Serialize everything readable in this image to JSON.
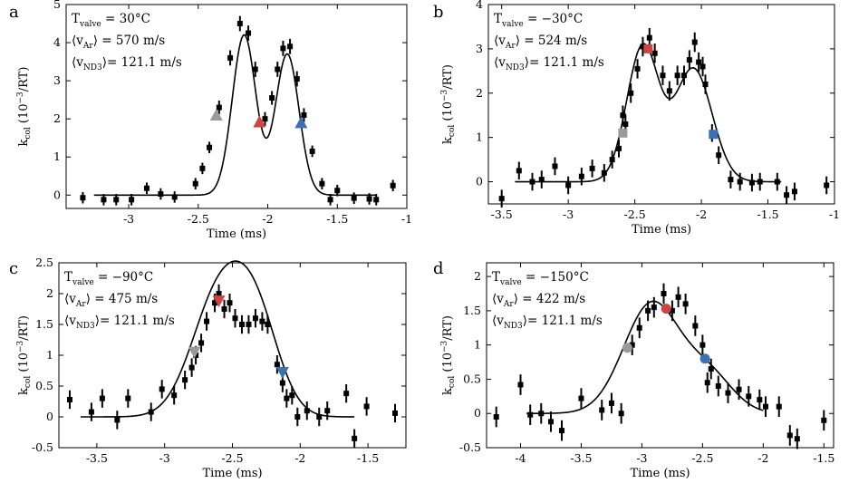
{
  "chart_data": [
    {
      "type": "scatter",
      "panel_label": "a",
      "title": "",
      "xlabel": "Time (ms)",
      "ylabel_main": "k",
      "ylabel_sub": "col",
      "ylabel_rest": " (10",
      "ylabel_exp": "−3",
      "ylabel_end": "/RT)",
      "xlim": [
        -3.45,
        -1.0
      ],
      "ylim": [
        -0.35,
        5.0
      ],
      "xticks": [
        -3,
        -2.5,
        -2,
        -1.5,
        -1
      ],
      "xtick_labels": [
        "-3",
        "-2.5",
        "-2",
        "-1.5",
        "-1"
      ],
      "yticks": [
        0,
        1,
        2,
        3,
        4,
        5
      ],
      "ytick_labels": [
        "0",
        "1",
        "2",
        "3",
        "4",
        "5"
      ],
      "marker_shape": "square",
      "annotation": {
        "line1_main": "T",
        "line1_sub": "valve",
        "line1_rest": " = 30°C",
        "line2_main": "⟨v",
        "line2_sub": "Ar",
        "line2_rest": "⟩ = 570 m/s",
        "line3_main": "⟨v",
        "line3_sub": "ND3",
        "line3_rest": "⟩= 121.1 m/s"
      },
      "fit": {
        "x_range": [
          -3.25,
          -1.22
        ],
        "components": [
          {
            "amp": 4.2,
            "center": -2.17,
            "sigma": 0.085
          },
          {
            "amp": 3.7,
            "center": -1.86,
            "sigma": 0.085
          }
        ]
      },
      "points": [
        {
          "x": -3.33,
          "y": -0.07,
          "err": 0.15
        },
        {
          "x": -3.18,
          "y": -0.12,
          "err": 0.15
        },
        {
          "x": -3.09,
          "y": -0.12,
          "err": 0.15
        },
        {
          "x": -2.98,
          "y": -0.12,
          "err": 0.15
        },
        {
          "x": -2.87,
          "y": 0.18,
          "err": 0.15
        },
        {
          "x": -2.77,
          "y": 0.03,
          "err": 0.15
        },
        {
          "x": -2.67,
          "y": -0.05,
          "err": 0.15
        },
        {
          "x": -2.52,
          "y": 0.3,
          "err": 0.15
        },
        {
          "x": -2.47,
          "y": 0.7,
          "err": 0.15
        },
        {
          "x": -2.42,
          "y": 1.25,
          "err": 0.15
        },
        {
          "x": -2.35,
          "y": 2.3,
          "err": 0.18
        },
        {
          "x": -2.27,
          "y": 3.6,
          "err": 0.2
        },
        {
          "x": -2.2,
          "y": 4.5,
          "err": 0.2
        },
        {
          "x": -2.14,
          "y": 4.25,
          "err": 0.2
        },
        {
          "x": -2.09,
          "y": 3.3,
          "err": 0.2
        },
        {
          "x": -2.02,
          "y": 2.0,
          "err": 0.18
        },
        {
          "x": -1.97,
          "y": 2.55,
          "err": 0.18
        },
        {
          "x": -1.93,
          "y": 3.3,
          "err": 0.2
        },
        {
          "x": -1.89,
          "y": 3.85,
          "err": 0.2
        },
        {
          "x": -1.84,
          "y": 3.9,
          "err": 0.2
        },
        {
          "x": -1.79,
          "y": 3.05,
          "err": 0.2
        },
        {
          "x": -1.74,
          "y": 2.1,
          "err": 0.18
        },
        {
          "x": -1.68,
          "y": 1.15,
          "err": 0.15
        },
        {
          "x": -1.61,
          "y": 0.3,
          "err": 0.15
        },
        {
          "x": -1.55,
          "y": -0.12,
          "err": 0.15
        },
        {
          "x": -1.5,
          "y": 0.12,
          "err": 0.15
        },
        {
          "x": -1.38,
          "y": -0.08,
          "err": 0.15
        },
        {
          "x": -1.27,
          "y": -0.1,
          "err": 0.15
        },
        {
          "x": -1.22,
          "y": -0.12,
          "err": 0.15
        },
        {
          "x": -1.1,
          "y": 0.25,
          "err": 0.15
        }
      ],
      "highlights": [
        {
          "x": -2.37,
          "y": 2.1,
          "shape": "triangle-up",
          "color": "#9a9a9a"
        },
        {
          "x": -2.06,
          "y": 1.92,
          "shape": "triangle-up",
          "color": "#cc4444"
        },
        {
          "x": -1.76,
          "y": 1.9,
          "shape": "triangle-up",
          "color": "#3d6fb5"
        }
      ]
    },
    {
      "type": "scatter",
      "panel_label": "b",
      "title": "",
      "xlabel": "Time (ms)",
      "ylabel_main": "k",
      "ylabel_sub": "col",
      "ylabel_rest": " (10",
      "ylabel_exp": "−3",
      "ylabel_end": "/RT)",
      "xlim": [
        -3.6,
        -1.0
      ],
      "ylim": [
        -0.5,
        4.0
      ],
      "xticks": [
        -3.5,
        -3,
        -2.5,
        -2,
        -1.5,
        -1
      ],
      "xtick_labels": [
        "-3.5",
        "-3",
        "-2.5",
        "-2",
        "-1.5",
        "-1"
      ],
      "yticks": [
        0,
        1,
        2,
        3,
        4
      ],
      "ytick_labels": [
        "0",
        "1",
        "2",
        "3",
        "4"
      ],
      "marker_shape": "square",
      "annotation": {
        "line1_main": "T",
        "line1_sub": "valve",
        "line1_rest": " = −30°C",
        "line2_main": "⟨v",
        "line2_sub": "Ar",
        "line2_rest": "⟩ = 524 m/s",
        "line3_main": "⟨v",
        "line3_sub": "ND3",
        "line3_rest": "⟩= 121.1 m/s"
      },
      "fit": {
        "x_range": [
          -3.4,
          -1.4
        ],
        "components": [
          {
            "amp": 3.05,
            "center": -2.44,
            "sigma": 0.12
          },
          {
            "amp": 2.55,
            "center": -2.06,
            "sigma": 0.14
          }
        ]
      },
      "points": [
        {
          "x": -3.5,
          "y": -0.38,
          "err": 0.2
        },
        {
          "x": -3.37,
          "y": 0.25,
          "err": 0.2
        },
        {
          "x": -3.27,
          "y": 0.0,
          "err": 0.2
        },
        {
          "x": -3.2,
          "y": 0.05,
          "err": 0.2
        },
        {
          "x": -3.1,
          "y": 0.35,
          "err": 0.2
        },
        {
          "x": -3.0,
          "y": -0.08,
          "err": 0.2
        },
        {
          "x": -2.9,
          "y": 0.12,
          "err": 0.2
        },
        {
          "x": -2.82,
          "y": 0.3,
          "err": 0.2
        },
        {
          "x": -2.73,
          "y": 0.2,
          "err": 0.2
        },
        {
          "x": -2.67,
          "y": 0.5,
          "err": 0.2
        },
        {
          "x": -2.62,
          "y": 0.75,
          "err": 0.2
        },
        {
          "x": -2.59,
          "y": 1.5,
          "err": 0.22
        },
        {
          "x": -2.57,
          "y": 1.3,
          "err": 0.22
        },
        {
          "x": -2.53,
          "y": 2.0,
          "err": 0.22
        },
        {
          "x": -2.48,
          "y": 2.55,
          "err": 0.22
        },
        {
          "x": -2.44,
          "y": 3.05,
          "err": 0.22
        },
        {
          "x": -2.39,
          "y": 3.25,
          "err": 0.22
        },
        {
          "x": -2.35,
          "y": 2.9,
          "err": 0.22
        },
        {
          "x": -2.29,
          "y": 2.4,
          "err": 0.22
        },
        {
          "x": -2.24,
          "y": 2.05,
          "err": 0.22
        },
        {
          "x": -2.18,
          "y": 2.4,
          "err": 0.22
        },
        {
          "x": -2.13,
          "y": 2.4,
          "err": 0.22
        },
        {
          "x": -2.09,
          "y": 2.75,
          "err": 0.22
        },
        {
          "x": -2.05,
          "y": 3.15,
          "err": 0.22
        },
        {
          "x": -2.02,
          "y": 2.7,
          "err": 0.22
        },
        {
          "x": -1.99,
          "y": 2.6,
          "err": 0.22
        },
        {
          "x": -1.97,
          "y": 2.2,
          "err": 0.22
        },
        {
          "x": -1.92,
          "y": 1.1,
          "err": 0.2
        },
        {
          "x": -1.87,
          "y": 0.6,
          "err": 0.2
        },
        {
          "x": -1.78,
          "y": 0.05,
          "err": 0.2
        },
        {
          "x": -1.71,
          "y": 0.0,
          "err": 0.2
        },
        {
          "x": -1.62,
          "y": -0.02,
          "err": 0.2
        },
        {
          "x": -1.56,
          "y": 0.0,
          "err": 0.2
        },
        {
          "x": -1.43,
          "y": 0.0,
          "err": 0.2
        },
        {
          "x": -1.36,
          "y": -0.3,
          "err": 0.2
        },
        {
          "x": -1.3,
          "y": -0.22,
          "err": 0.2
        },
        {
          "x": -1.06,
          "y": -0.08,
          "err": 0.2
        }
      ],
      "highlights": [
        {
          "x": -2.59,
          "y": 1.1,
          "shape": "square",
          "color": "#9a9a9a"
        },
        {
          "x": -2.4,
          "y": 3.0,
          "shape": "square",
          "color": "#cc4444"
        },
        {
          "x": -1.91,
          "y": 1.07,
          "shape": "square",
          "color": "#3d6fb5"
        }
      ]
    },
    {
      "type": "scatter",
      "panel_label": "c",
      "title": "",
      "xlabel": "Time (ms)",
      "ylabel_main": "k",
      "ylabel_sub": "col",
      "ylabel_rest": " (10",
      "ylabel_exp": "−3",
      "ylabel_end": "/RT)",
      "xlim": [
        -3.78,
        -1.22
      ],
      "ylim": [
        -0.5,
        2.5
      ],
      "xticks": [
        -3.5,
        -3,
        -2.5,
        -2,
        -1.5
      ],
      "xtick_labels": [
        "-3.5",
        "-3",
        "-2.5",
        "-2",
        "-1.5"
      ],
      "yticks": [
        -0.5,
        0,
        0.5,
        1,
        1.5,
        2,
        2.5
      ],
      "ytick_labels": [
        "-0.5",
        "0",
        "0.5",
        "1",
        "1.5",
        "2",
        "2.5"
      ],
      "marker_shape": "square",
      "annotation": {
        "line1_main": "T",
        "line1_sub": "valve",
        "line1_rest": " = −90°C",
        "line2_main": "⟨v",
        "line2_sub": "Ar",
        "line2_rest": "⟩ = 475 m/s",
        "line3_main": "⟨v",
        "line3_sub": "ND3",
        "line3_rest": "⟩= 121.1 m/s"
      },
      "fit": {
        "x_range": [
          -3.62,
          -1.6
        ],
        "components": [
          {
            "amp": 1.95,
            "center": -2.6,
            "sigma": 0.2
          },
          {
            "amp": 1.4,
            "center": -2.32,
            "sigma": 0.17
          }
        ]
      },
      "points": [
        {
          "x": -3.7,
          "y": 0.28,
          "err": 0.15
        },
        {
          "x": -3.54,
          "y": 0.08,
          "err": 0.15
        },
        {
          "x": -3.46,
          "y": 0.3,
          "err": 0.15
        },
        {
          "x": -3.35,
          "y": -0.05,
          "err": 0.15
        },
        {
          "x": -3.27,
          "y": 0.3,
          "err": 0.15
        },
        {
          "x": -3.1,
          "y": 0.08,
          "err": 0.15
        },
        {
          "x": -3.02,
          "y": 0.45,
          "err": 0.15
        },
        {
          "x": -2.93,
          "y": 0.35,
          "err": 0.15
        },
        {
          "x": -2.85,
          "y": 0.6,
          "err": 0.15
        },
        {
          "x": -2.8,
          "y": 0.8,
          "err": 0.15
        },
        {
          "x": -2.77,
          "y": 1.0,
          "err": 0.15
        },
        {
          "x": -2.73,
          "y": 1.2,
          "err": 0.15
        },
        {
          "x": -2.69,
          "y": 1.55,
          "err": 0.15
        },
        {
          "x": -2.63,
          "y": 1.85,
          "err": 0.15
        },
        {
          "x": -2.6,
          "y": 2.0,
          "err": 0.15
        },
        {
          "x": -2.56,
          "y": 1.75,
          "err": 0.15
        },
        {
          "x": -2.52,
          "y": 1.85,
          "err": 0.15
        },
        {
          "x": -2.48,
          "y": 1.6,
          "err": 0.15
        },
        {
          "x": -2.43,
          "y": 1.5,
          "err": 0.15
        },
        {
          "x": -2.38,
          "y": 1.5,
          "err": 0.15
        },
        {
          "x": -2.33,
          "y": 1.6,
          "err": 0.15
        },
        {
          "x": -2.28,
          "y": 1.55,
          "err": 0.15
        },
        {
          "x": -2.24,
          "y": 1.5,
          "err": 0.15
        },
        {
          "x": -2.17,
          "y": 0.85,
          "err": 0.15
        },
        {
          "x": -2.13,
          "y": 0.55,
          "err": 0.15
        },
        {
          "x": -2.1,
          "y": 0.3,
          "err": 0.15
        },
        {
          "x": -2.06,
          "y": 0.35,
          "err": 0.15
        },
        {
          "x": -2.02,
          "y": 0.0,
          "err": 0.15
        },
        {
          "x": -1.95,
          "y": 0.1,
          "err": 0.15
        },
        {
          "x": -1.86,
          "y": 0.0,
          "err": 0.15
        },
        {
          "x": -1.8,
          "y": 0.1,
          "err": 0.15
        },
        {
          "x": -1.66,
          "y": 0.38,
          "err": 0.15
        },
        {
          "x": -1.6,
          "y": -0.35,
          "err": 0.15
        },
        {
          "x": -1.51,
          "y": 0.17,
          "err": 0.15
        },
        {
          "x": -1.3,
          "y": 0.06,
          "err": 0.15
        }
      ],
      "highlights": [
        {
          "x": -2.78,
          "y": 1.05,
          "shape": "triangle-down",
          "color": "#9a9a9a"
        },
        {
          "x": -2.6,
          "y": 1.88,
          "shape": "triangle-down",
          "color": "#cc4444"
        },
        {
          "x": -2.13,
          "y": 0.72,
          "shape": "triangle-down",
          "color": "#3d6fb5"
        }
      ]
    },
    {
      "type": "scatter",
      "panel_label": "d",
      "title": "",
      "xlabel": "Time (ms)",
      "ylabel_main": "k",
      "ylabel_sub": "col",
      "ylabel_rest": " (10",
      "ylabel_exp": "−3",
      "ylabel_end": "/RT)",
      "xlim": [
        -4.28,
        -1.42
      ],
      "ylim": [
        -0.5,
        2.2
      ],
      "xticks": [
        -4,
        -3.5,
        -3,
        -2.5,
        -2,
        -1.5
      ],
      "xtick_labels": [
        "-4",
        "-3.5",
        "-3",
        "-2.5",
        "-2",
        "-1.5"
      ],
      "yticks": [
        -0.5,
        0,
        0.5,
        1,
        1.5,
        2
      ],
      "ytick_labels": [
        "-0.5",
        "0",
        "0.5",
        "1",
        "1.5",
        "2"
      ],
      "marker_shape": "square",
      "annotation": {
        "line1_main": "T",
        "line1_sub": "valve",
        "line1_rest": " = −150°C",
        "line2_main": "⟨v",
        "line2_sub": "Ar",
        "line2_rest": "⟩ = 422 m/s",
        "line3_main": "⟨v",
        "line3_sub": "ND3",
        "line3_rest": "⟩= 121.1 m/s"
      },
      "fit": {
        "x_range": [
          -3.95,
          -2.0
        ],
        "components": [
          {
            "amp": 1.6,
            "center": -2.92,
            "sigma": 0.23
          },
          {
            "amp": 0.55,
            "center": -2.45,
            "sigma": 0.2
          }
        ]
      },
      "points": [
        {
          "x": -4.2,
          "y": -0.05,
          "err": 0.15
        },
        {
          "x": -4.0,
          "y": 0.42,
          "err": 0.15
        },
        {
          "x": -3.92,
          "y": -0.02,
          "err": 0.15
        },
        {
          "x": -3.83,
          "y": 0.0,
          "err": 0.15
        },
        {
          "x": -3.75,
          "y": -0.12,
          "err": 0.15
        },
        {
          "x": -3.66,
          "y": -0.25,
          "err": 0.15
        },
        {
          "x": -3.5,
          "y": 0.22,
          "err": 0.15
        },
        {
          "x": -3.33,
          "y": 0.05,
          "err": 0.15
        },
        {
          "x": -3.25,
          "y": 0.15,
          "err": 0.15
        },
        {
          "x": -3.17,
          "y": 0.0,
          "err": 0.15
        },
        {
          "x": -3.08,
          "y": 1.0,
          "err": 0.15
        },
        {
          "x": -3.02,
          "y": 1.25,
          "err": 0.15
        },
        {
          "x": -2.95,
          "y": 1.5,
          "err": 0.15
        },
        {
          "x": -2.9,
          "y": 1.55,
          "err": 0.15
        },
        {
          "x": -2.82,
          "y": 1.75,
          "err": 0.15
        },
        {
          "x": -2.75,
          "y": 1.5,
          "err": 0.15
        },
        {
          "x": -2.7,
          "y": 1.7,
          "err": 0.15
        },
        {
          "x": -2.64,
          "y": 1.6,
          "err": 0.15
        },
        {
          "x": -2.56,
          "y": 1.28,
          "err": 0.15
        },
        {
          "x": -2.5,
          "y": 1.0,
          "err": 0.15
        },
        {
          "x": -2.46,
          "y": 0.45,
          "err": 0.15
        },
        {
          "x": -2.43,
          "y": 0.65,
          "err": 0.15
        },
        {
          "x": -2.37,
          "y": 0.4,
          "err": 0.15
        },
        {
          "x": -2.29,
          "y": 0.3,
          "err": 0.15
        },
        {
          "x": -2.2,
          "y": 0.35,
          "err": 0.15
        },
        {
          "x": -2.12,
          "y": 0.25,
          "err": 0.15
        },
        {
          "x": -2.03,
          "y": 0.2,
          "err": 0.15
        },
        {
          "x": -1.98,
          "y": 0.1,
          "err": 0.15
        },
        {
          "x": -1.87,
          "y": 0.1,
          "err": 0.15
        },
        {
          "x": -1.78,
          "y": -0.32,
          "err": 0.15
        },
        {
          "x": -1.72,
          "y": -0.37,
          "err": 0.15
        },
        {
          "x": -1.5,
          "y": -0.1,
          "err": 0.15
        }
      ],
      "highlights": [
        {
          "x": -3.12,
          "y": 0.96,
          "shape": "circle",
          "color": "#9a9a9a"
        },
        {
          "x": -2.8,
          "y": 1.53,
          "shape": "circle",
          "color": "#cc4444"
        },
        {
          "x": -2.48,
          "y": 0.8,
          "shape": "circle",
          "color": "#3d6fb5"
        }
      ]
    }
  ]
}
